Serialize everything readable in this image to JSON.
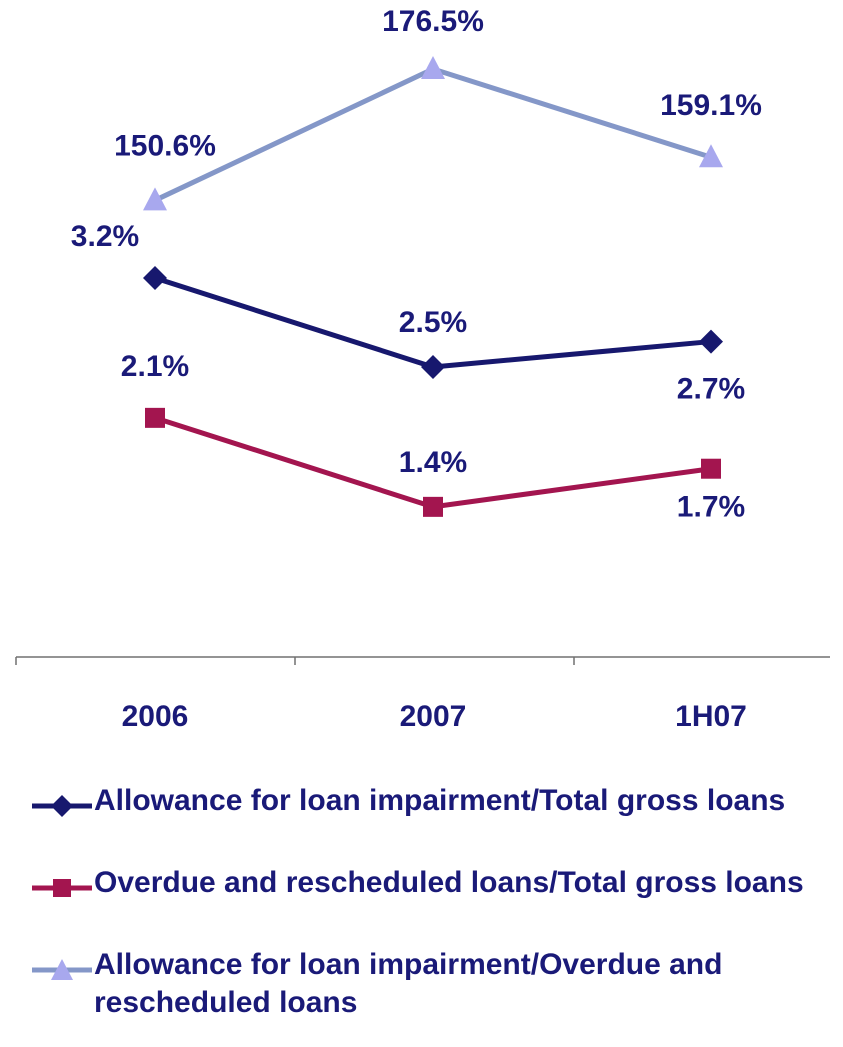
{
  "chart_data": {
    "type": "line",
    "categories": [
      "2006",
      "2007",
      "1H07"
    ],
    "series": [
      {
        "name": "Allowance for loan impairment/Total gross loans",
        "values": [
          3.2,
          2.5,
          2.7
        ],
        "labels": [
          "3.2%",
          "2.5%",
          "2.7%"
        ],
        "color": "#17186e",
        "marker": "diamond"
      },
      {
        "name": "Overdue and rescheduled loans/Total gross loans",
        "values": [
          2.1,
          1.4,
          1.7
        ],
        "labels": [
          "2.1%",
          "1.4%",
          "1.7%"
        ],
        "color": "#a3154f",
        "marker": "square"
      },
      {
        "name": "Allowance for loan impairment/Overdue and rescheduled loans",
        "values": [
          150.6,
          176.5,
          159.1
        ],
        "labels": [
          "150.6%",
          "176.5%",
          "159.1%"
        ],
        "color": "#8497c8",
        "marker_color": "#a8a8ee",
        "marker": "triangle"
      }
    ],
    "grid": false,
    "legend_position": "bottom"
  }
}
